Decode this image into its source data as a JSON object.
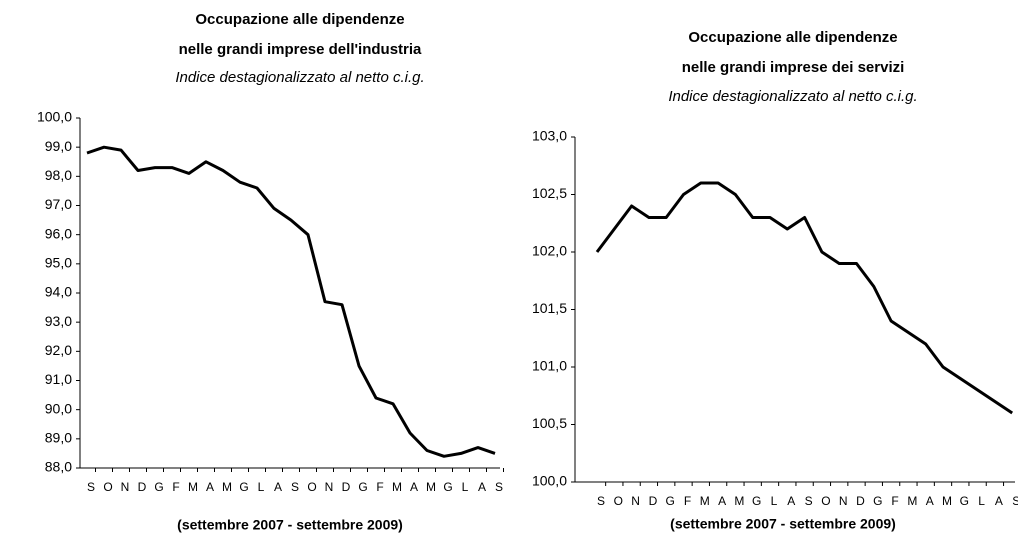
{
  "chart_data": [
    {
      "type": "line",
      "title": "Occupazione alle dipendenze",
      "subtitle": "nelle grandi imprese dell'industria",
      "note": "Indice destagionalizzato al netto c.i.g.",
      "x_label": "(settembre 2007 - settembre 2009)",
      "categories": [
        "S",
        "O",
        "N",
        "D",
        "G",
        "F",
        "M",
        "A",
        "M",
        "G",
        "L",
        "A",
        "S",
        "O",
        "N",
        "D",
        "G",
        "F",
        "M",
        "A",
        "M",
        "G",
        "L",
        "A",
        "S"
      ],
      "values": [
        98.8,
        99.0,
        98.9,
        98.2,
        98.3,
        98.3,
        98.1,
        98.5,
        98.2,
        97.8,
        97.6,
        96.9,
        96.5,
        96.0,
        93.7,
        93.6,
        91.5,
        90.4,
        90.2,
        89.2,
        88.6,
        88.4,
        88.5,
        88.7,
        88.5
      ],
      "color": "#000000",
      "ylim": [
        88,
        100
      ],
      "yticks": [
        {
          "value": 88,
          "label": "88,0"
        },
        {
          "value": 89,
          "label": "89,0"
        },
        {
          "value": 90,
          "label": "90,0"
        },
        {
          "value": 91,
          "label": "91,0"
        },
        {
          "value": 92,
          "label": "92,0"
        },
        {
          "value": 93,
          "label": "93,0"
        },
        {
          "value": 94,
          "label": "94,0"
        },
        {
          "value": 95,
          "label": "95,0"
        },
        {
          "value": 96,
          "label": "96,0"
        },
        {
          "value": 97,
          "label": "97,0"
        },
        {
          "value": 98,
          "label": "98,0"
        },
        {
          "value": 99,
          "label": "99,0"
        },
        {
          "value": 100,
          "label": "100,0"
        }
      ],
      "grid": false
    },
    {
      "type": "line",
      "title": "Occupazione alle dipendenze",
      "subtitle": "nelle grandi imprese dei servizi",
      "note": "Indice destagionalizzato al netto c.i.g.",
      "x_label": "(settembre 2007 - settembre 2009)",
      "categories": [
        "S",
        "O",
        "N",
        "D",
        "G",
        "F",
        "M",
        "A",
        "M",
        "G",
        "L",
        "A",
        "S",
        "O",
        "N",
        "D",
        "G",
        "F",
        "M",
        "A",
        "M",
        "G",
        "L",
        "A",
        "S"
      ],
      "values": [
        102.0,
        102.2,
        102.4,
        102.3,
        102.3,
        102.5,
        102.6,
        102.6,
        102.5,
        102.3,
        102.3,
        102.2,
        102.3,
        102.0,
        101.9,
        101.9,
        101.7,
        101.4,
        101.3,
        101.2,
        101.0,
        100.9,
        100.8,
        100.7,
        100.6
      ],
      "color": "#000000",
      "ylim": [
        100,
        103
      ],
      "yticks": [
        {
          "value": 100,
          "label": "100,0"
        },
        {
          "value": 100.5,
          "label": "100,5"
        },
        {
          "value": 101,
          "label": "101,0"
        },
        {
          "value": 101.5,
          "label": "101,5"
        },
        {
          "value": 102,
          "label": "102,0"
        },
        {
          "value": 102.5,
          "label": "102,5"
        },
        {
          "value": 103,
          "label": "103,0"
        }
      ],
      "grid": false
    }
  ]
}
